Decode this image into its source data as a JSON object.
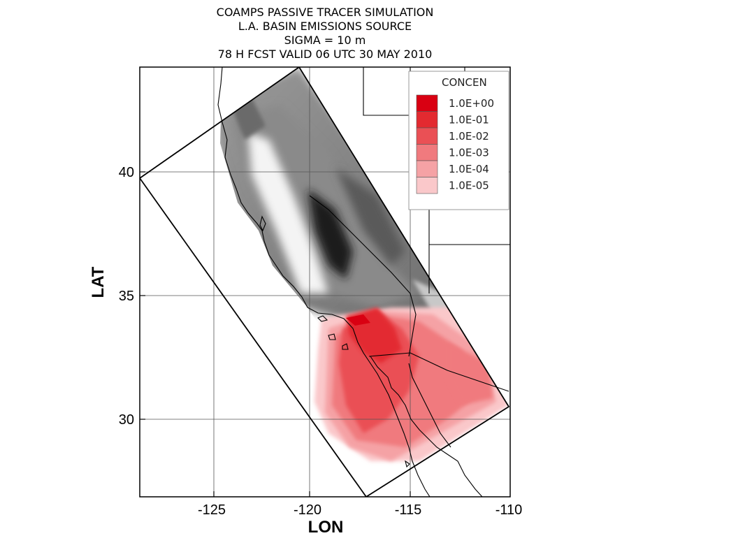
{
  "title": {
    "line1": "COAMPS PASSIVE TRACER SIMULATION",
    "line2": "L.A. BASIN EMISSIONS SOURCE",
    "line3": "SIGMA = 10 m",
    "line4": "78 H FCST VALID 06 UTC 30 MAY 2010"
  },
  "axes": {
    "xlabel": "LON",
    "ylabel": "LAT",
    "xlim": [
      -128.5,
      -110
    ],
    "ylim": [
      27,
      44.3
    ],
    "xticks": [
      -125,
      -120,
      -115,
      -110
    ],
    "xtick_labels": [
      "-125",
      "-120",
      "-115",
      "-110"
    ],
    "yticks": [
      30,
      35,
      40
    ],
    "ytick_labels": [
      "30",
      "35",
      "40"
    ],
    "grid": true
  },
  "legend": {
    "title": "CONCEN",
    "placement": "top-right",
    "entries": [
      {
        "label": "1.0E+00",
        "color": "#d90012"
      },
      {
        "label": "1.0E-01",
        "color": "#e32a30"
      },
      {
        "label": "1.0E-02",
        "color": "#ea5055"
      },
      {
        "label": "1.0E-03",
        "color": "#f07a7e"
      },
      {
        "label": "1.0E-04",
        "color": "#f5a2a5"
      },
      {
        "label": "1.0E-05",
        "color": "#fac8ca"
      }
    ]
  },
  "colors": {
    "terrain_dark": "#2b2b2b",
    "terrain_light": "#e8e8e8",
    "plume": "#ea5055"
  }
}
